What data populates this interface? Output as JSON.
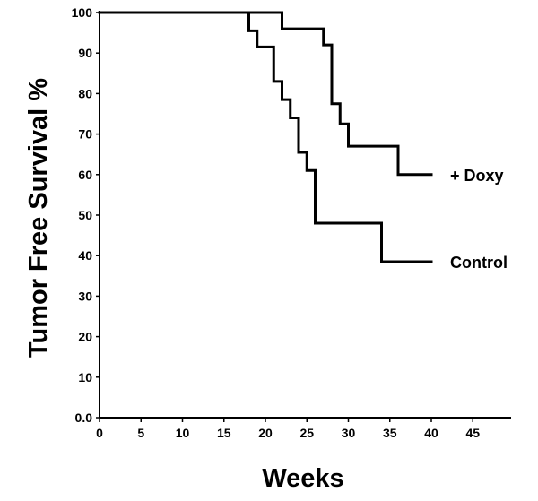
{
  "chart_data": {
    "type": "line",
    "subtype": "step",
    "title": "",
    "xlabel": "Weeks",
    "ylabel": "Tumor Free Survival %",
    "xlim": [
      0,
      50
    ],
    "ylim": [
      0,
      100
    ],
    "x_ticks": [
      0,
      5,
      10,
      15,
      20,
      25,
      30,
      35,
      40,
      45
    ],
    "x_tick_labels": [
      "0",
      "5",
      "10",
      "15",
      "20",
      "25",
      "30",
      "35",
      "40",
      "45"
    ],
    "y_ticks": [
      0,
      10,
      20,
      30,
      40,
      50,
      60,
      70,
      80,
      90,
      100
    ],
    "y_tick_labels": [
      "0.0",
      "10",
      "20",
      "30",
      "40",
      "50",
      "60",
      "70",
      "80",
      "90",
      "100"
    ],
    "grid": false,
    "series": [
      {
        "name": "+ Doxy",
        "color": "#000000",
        "steps": [
          {
            "x": 0,
            "y": 100
          },
          {
            "x": 22,
            "y": 96
          },
          {
            "x": 27,
            "y": 92
          },
          {
            "x": 28,
            "y": 77.5
          },
          {
            "x": 29,
            "y": 72.5
          },
          {
            "x": 30,
            "y": 67
          },
          {
            "x": 36,
            "y": 60
          },
          {
            "x": 40,
            "y": 60
          }
        ]
      },
      {
        "name": "Control",
        "color": "#000000",
        "steps": [
          {
            "x": 0,
            "y": 100
          },
          {
            "x": 18,
            "y": 95.5
          },
          {
            "x": 19,
            "y": 91.5
          },
          {
            "x": 21,
            "y": 83
          },
          {
            "x": 22,
            "y": 78.5
          },
          {
            "x": 23,
            "y": 74
          },
          {
            "x": 24,
            "y": 65.5
          },
          {
            "x": 25,
            "y": 61
          },
          {
            "x": 26,
            "y": 48
          },
          {
            "x": 34,
            "y": 38.5
          },
          {
            "x": 40,
            "y": 38.5
          }
        ]
      }
    ]
  }
}
